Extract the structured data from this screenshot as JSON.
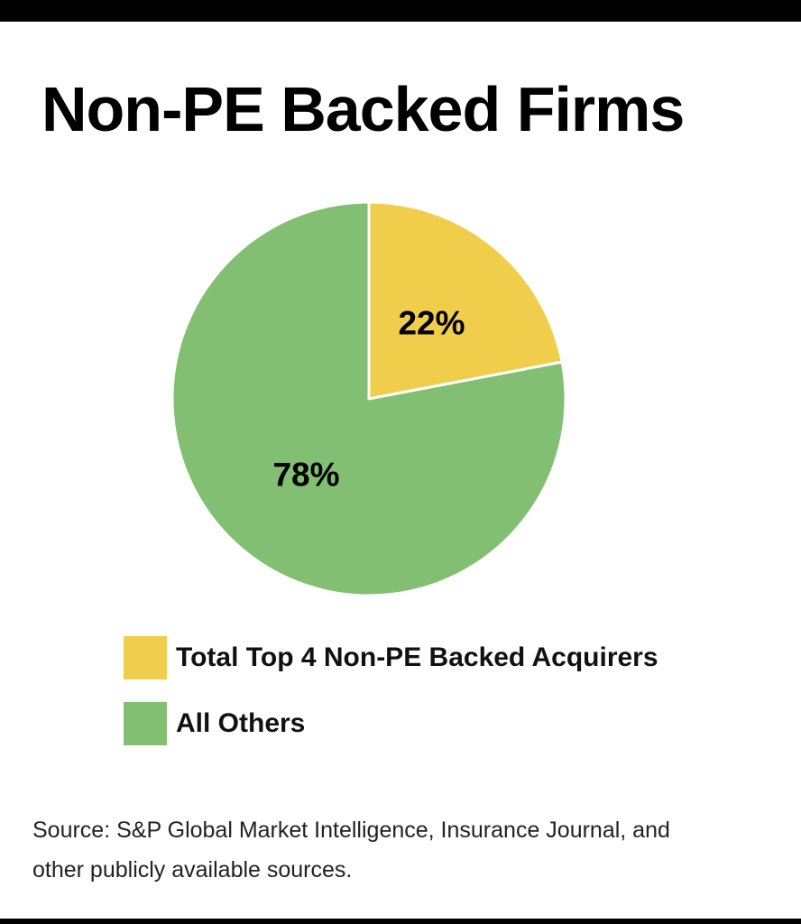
{
  "chart_data": {
    "type": "pie",
    "title": "Non-PE Backed Firms",
    "slices": [
      {
        "label": "Total Top 4 Non-PE Backed Acquirers",
        "value": 22,
        "display": "22%",
        "color": "#f0cd4a"
      },
      {
        "label": "All Others",
        "value": 78,
        "display": "78%",
        "color": "#82bf73"
      }
    ],
    "legend_position": "bottom-left",
    "start_angle": "top",
    "direction": "clockwise"
  },
  "source": {
    "line1": "Source:  S&P Global Market Intelligence, Insurance Journal, and",
    "line2": "other publicly available sources."
  }
}
